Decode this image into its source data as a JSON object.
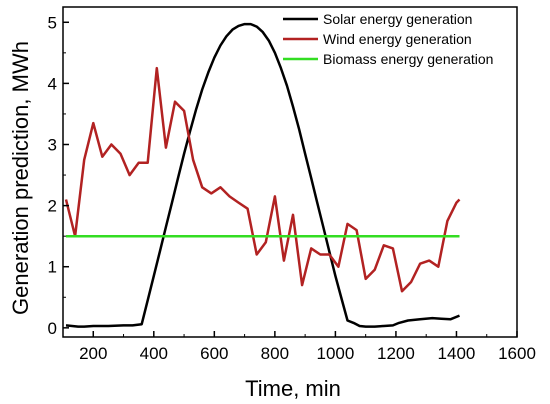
{
  "chart_data": {
    "type": "line",
    "xlabel": "Time, min",
    "ylabel": "Generation prediction, MWh",
    "xlim": [
      100,
      1600
    ],
    "ylim": [
      -0.15,
      5.25
    ],
    "xticks": [
      200,
      400,
      600,
      800,
      1000,
      1200,
      1400,
      1600
    ],
    "yticks": [
      0,
      1,
      2,
      3,
      4,
      5
    ],
    "grid": false,
    "legend_position": "top-right",
    "series": [
      {
        "name": "Solar energy generation",
        "color": "#000000",
        "x": [
          110,
          130,
          150,
          170,
          200,
          250,
          300,
          330,
          360,
          380,
          400,
          420,
          440,
          460,
          480,
          500,
          520,
          540,
          560,
          580,
          600,
          620,
          640,
          660,
          680,
          700,
          720,
          740,
          760,
          780,
          800,
          820,
          840,
          860,
          880,
          900,
          920,
          940,
          960,
          980,
          1000,
          1020,
          1040,
          1060,
          1080,
          1100,
          1130,
          1160,
          1190,
          1210,
          1240,
          1280,
          1320,
          1350,
          1380,
          1410
        ],
        "y": [
          0.04,
          0.03,
          0.02,
          0.02,
          0.03,
          0.03,
          0.04,
          0.04,
          0.06,
          0.45,
          0.85,
          1.25,
          1.65,
          2.05,
          2.45,
          2.85,
          3.22,
          3.58,
          3.9,
          4.18,
          4.42,
          4.62,
          4.77,
          4.88,
          4.94,
          4.97,
          4.97,
          4.93,
          4.84,
          4.7,
          4.5,
          4.25,
          3.96,
          3.62,
          3.25,
          2.85,
          2.45,
          2.05,
          1.65,
          1.25,
          0.85,
          0.48,
          0.12,
          0.08,
          0.03,
          0.02,
          0.02,
          0.03,
          0.04,
          0.08,
          0.12,
          0.14,
          0.16,
          0.15,
          0.14,
          0.2
        ]
      },
      {
        "name": "Wind energy generation",
        "color": "#b22222",
        "x": [
          110,
          140,
          170,
          200,
          230,
          260,
          290,
          320,
          350,
          380,
          410,
          440,
          470,
          500,
          530,
          560,
          590,
          620,
          650,
          680,
          710,
          740,
          770,
          800,
          830,
          860,
          890,
          920,
          950,
          980,
          1010,
          1040,
          1070,
          1100,
          1130,
          1160,
          1190,
          1220,
          1250,
          1280,
          1310,
          1340,
          1370,
          1400,
          1410
        ],
        "y": [
          2.1,
          1.5,
          2.75,
          3.35,
          2.8,
          3.0,
          2.85,
          2.5,
          2.7,
          2.7,
          4.25,
          2.95,
          3.7,
          3.55,
          2.75,
          2.3,
          2.2,
          2.3,
          2.15,
          2.05,
          1.95,
          1.2,
          1.4,
          2.15,
          1.1,
          1.85,
          0.7,
          1.3,
          1.2,
          1.2,
          1.0,
          1.7,
          1.6,
          0.8,
          0.95,
          1.35,
          1.3,
          0.6,
          0.75,
          1.05,
          1.1,
          1.0,
          1.75,
          2.05,
          2.1
        ]
      },
      {
        "name": "Biomass energy generation",
        "color": "#33dd22",
        "x": [
          110,
          1410
        ],
        "y": [
          1.5,
          1.5
        ]
      }
    ]
  }
}
